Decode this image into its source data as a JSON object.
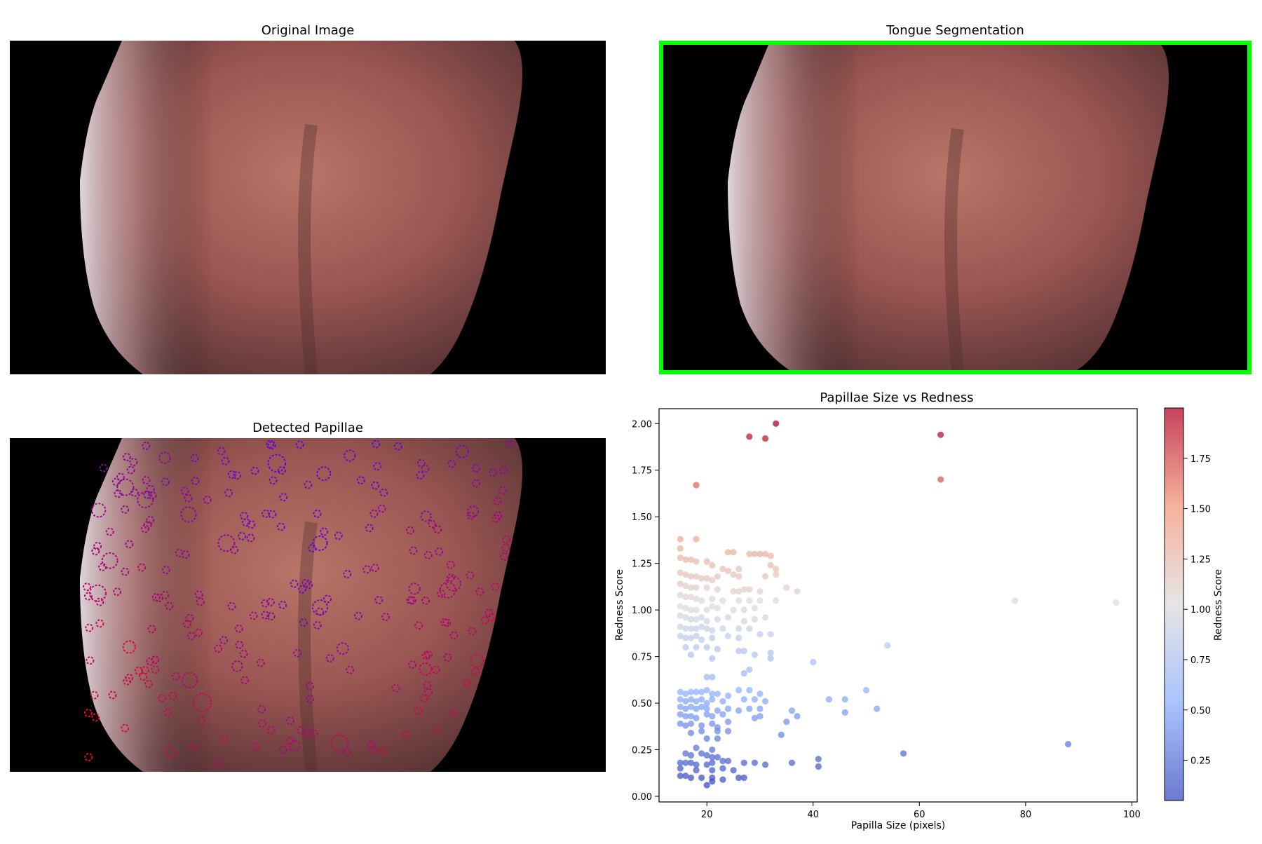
{
  "panels": {
    "original": {
      "title": "Original Image"
    },
    "segmentation": {
      "title": "Tongue Segmentation",
      "border_color": "#00ff00"
    },
    "papillae": {
      "title": "Detected Papillae"
    }
  },
  "chart_data": {
    "type": "scatter",
    "title": "Papillae Size vs Redness",
    "xlabel": "Papilla Size (pixels)",
    "ylabel": "Redness Score",
    "xlim": [
      11,
      101
    ],
    "ylim": [
      -0.03,
      2.08
    ],
    "xticks": [
      20,
      40,
      60,
      80,
      100
    ],
    "yticks": [
      0.0,
      0.25,
      0.5,
      0.75,
      1.0,
      1.25,
      1.5,
      1.75,
      2.0
    ],
    "xtick_labels": [
      "20",
      "40",
      "60",
      "80",
      "100"
    ],
    "ytick_labels": [
      "0.00",
      "0.25",
      "0.50",
      "0.75",
      "1.00",
      "1.25",
      "1.50",
      "1.75",
      "2.00"
    ],
    "colormap": "coolwarm",
    "colorbar": {
      "label": "Redness Score",
      "range": [
        0.05,
        2.0
      ],
      "ticks": [
        0.25,
        0.5,
        0.75,
        1.0,
        1.25,
        1.5,
        1.75
      ],
      "tick_labels": [
        "0.25",
        "0.50",
        "0.75",
        "1.00",
        "1.25",
        "1.50",
        "1.75"
      ]
    },
    "grid": false,
    "points": [
      {
        "x": 33,
        "y": 2.0
      },
      {
        "x": 28,
        "y": 1.93
      },
      {
        "x": 31,
        "y": 1.92
      },
      {
        "x": 64,
        "y": 1.94
      },
      {
        "x": 64,
        "y": 1.7
      },
      {
        "x": 18,
        "y": 1.67
      },
      {
        "x": 15,
        "y": 1.38
      },
      {
        "x": 18,
        "y": 1.38
      },
      {
        "x": 15,
        "y": 1.33
      },
      {
        "x": 24,
        "y": 1.31
      },
      {
        "x": 25,
        "y": 1.31
      },
      {
        "x": 28,
        "y": 1.3
      },
      {
        "x": 29,
        "y": 1.3
      },
      {
        "x": 30,
        "y": 1.3
      },
      {
        "x": 31,
        "y": 1.3
      },
      {
        "x": 32,
        "y": 1.29
      },
      {
        "x": 15,
        "y": 1.28
      },
      {
        "x": 16,
        "y": 1.27
      },
      {
        "x": 17,
        "y": 1.27
      },
      {
        "x": 18,
        "y": 1.26
      },
      {
        "x": 20,
        "y": 1.26
      },
      {
        "x": 21,
        "y": 1.24
      },
      {
        "x": 23,
        "y": 1.22
      },
      {
        "x": 24,
        "y": 1.21
      },
      {
        "x": 26,
        "y": 1.22
      },
      {
        "x": 32,
        "y": 1.24
      },
      {
        "x": 33,
        "y": 1.22
      },
      {
        "x": 15,
        "y": 1.2
      },
      {
        "x": 16,
        "y": 1.19
      },
      {
        "x": 17,
        "y": 1.18
      },
      {
        "x": 18,
        "y": 1.18
      },
      {
        "x": 19,
        "y": 1.17
      },
      {
        "x": 20,
        "y": 1.17
      },
      {
        "x": 21,
        "y": 1.16
      },
      {
        "x": 22,
        "y": 1.18
      },
      {
        "x": 25,
        "y": 1.19
      },
      {
        "x": 26,
        "y": 1.18
      },
      {
        "x": 31,
        "y": 1.18
      },
      {
        "x": 33,
        "y": 1.19
      },
      {
        "x": 15,
        "y": 1.14
      },
      {
        "x": 16,
        "y": 1.13
      },
      {
        "x": 17,
        "y": 1.12
      },
      {
        "x": 18,
        "y": 1.12
      },
      {
        "x": 20,
        "y": 1.12
      },
      {
        "x": 22,
        "y": 1.11
      },
      {
        "x": 25,
        "y": 1.1
      },
      {
        "x": 26,
        "y": 1.1
      },
      {
        "x": 27,
        "y": 1.11
      },
      {
        "x": 28,
        "y": 1.11
      },
      {
        "x": 30,
        "y": 1.1
      },
      {
        "x": 35,
        "y": 1.12
      },
      {
        "x": 37,
        "y": 1.1
      },
      {
        "x": 15,
        "y": 1.08
      },
      {
        "x": 16,
        "y": 1.07
      },
      {
        "x": 17,
        "y": 1.07
      },
      {
        "x": 18,
        "y": 1.06
      },
      {
        "x": 19,
        "y": 1.05
      },
      {
        "x": 21,
        "y": 1.06
      },
      {
        "x": 23,
        "y": 1.05
      },
      {
        "x": 26,
        "y": 1.05
      },
      {
        "x": 28,
        "y": 1.05
      },
      {
        "x": 30,
        "y": 1.05
      },
      {
        "x": 33,
        "y": 1.05
      },
      {
        "x": 78,
        "y": 1.05
      },
      {
        "x": 97,
        "y": 1.04
      },
      {
        "x": 15,
        "y": 1.02
      },
      {
        "x": 16,
        "y": 1.01
      },
      {
        "x": 17,
        "y": 1.0
      },
      {
        "x": 18,
        "y": 1.0
      },
      {
        "x": 20,
        "y": 1.0
      },
      {
        "x": 21,
        "y": 1.02
      },
      {
        "x": 22,
        "y": 1.01
      },
      {
        "x": 25,
        "y": 1.0
      },
      {
        "x": 27,
        "y": 1.0
      },
      {
        "x": 29,
        "y": 1.01
      },
      {
        "x": 15,
        "y": 0.97
      },
      {
        "x": 16,
        "y": 0.96
      },
      {
        "x": 17,
        "y": 0.95
      },
      {
        "x": 18,
        "y": 0.95
      },
      {
        "x": 19,
        "y": 0.96
      },
      {
        "x": 20,
        "y": 0.94
      },
      {
        "x": 22,
        "y": 0.95
      },
      {
        "x": 24,
        "y": 0.96
      },
      {
        "x": 27,
        "y": 0.94
      },
      {
        "x": 29,
        "y": 0.95
      },
      {
        "x": 31,
        "y": 0.96
      },
      {
        "x": 15,
        "y": 0.91
      },
      {
        "x": 16,
        "y": 0.9
      },
      {
        "x": 17,
        "y": 0.9
      },
      {
        "x": 18,
        "y": 0.9
      },
      {
        "x": 19,
        "y": 0.91
      },
      {
        "x": 20,
        "y": 0.9
      },
      {
        "x": 21,
        "y": 0.89
      },
      {
        "x": 23,
        "y": 0.9
      },
      {
        "x": 26,
        "y": 0.9
      },
      {
        "x": 28,
        "y": 0.9
      },
      {
        "x": 15,
        "y": 0.86
      },
      {
        "x": 16,
        "y": 0.85
      },
      {
        "x": 17,
        "y": 0.85
      },
      {
        "x": 18,
        "y": 0.86
      },
      {
        "x": 19,
        "y": 0.84
      },
      {
        "x": 21,
        "y": 0.85
      },
      {
        "x": 24,
        "y": 0.86
      },
      {
        "x": 26,
        "y": 0.85
      },
      {
        "x": 30,
        "y": 0.87
      },
      {
        "x": 32,
        "y": 0.87
      },
      {
        "x": 16,
        "y": 0.8
      },
      {
        "x": 18,
        "y": 0.8
      },
      {
        "x": 20,
        "y": 0.8
      },
      {
        "x": 22,
        "y": 0.79
      },
      {
        "x": 26,
        "y": 0.78
      },
      {
        "x": 27,
        "y": 0.78
      },
      {
        "x": 29,
        "y": 0.76
      },
      {
        "x": 32,
        "y": 0.77
      },
      {
        "x": 54,
        "y": 0.81
      },
      {
        "x": 17,
        "y": 0.76
      },
      {
        "x": 21,
        "y": 0.74
      },
      {
        "x": 32,
        "y": 0.74
      },
      {
        "x": 40,
        "y": 0.72
      },
      {
        "x": 28,
        "y": 0.68
      },
      {
        "x": 27,
        "y": 0.66
      },
      {
        "x": 20,
        "y": 0.64
      },
      {
        "x": 21,
        "y": 0.64
      },
      {
        "x": 15,
        "y": 0.56
      },
      {
        "x": 16,
        "y": 0.55
      },
      {
        "x": 17,
        "y": 0.56
      },
      {
        "x": 18,
        "y": 0.56
      },
      {
        "x": 19,
        "y": 0.56
      },
      {
        "x": 20,
        "y": 0.57
      },
      {
        "x": 21,
        "y": 0.55
      },
      {
        "x": 22,
        "y": 0.55
      },
      {
        "x": 24,
        "y": 0.54
      },
      {
        "x": 26,
        "y": 0.57
      },
      {
        "x": 28,
        "y": 0.57
      },
      {
        "x": 30,
        "y": 0.55
      },
      {
        "x": 50,
        "y": 0.57
      },
      {
        "x": 15,
        "y": 0.52
      },
      {
        "x": 16,
        "y": 0.51
      },
      {
        "x": 17,
        "y": 0.52
      },
      {
        "x": 18,
        "y": 0.51
      },
      {
        "x": 19,
        "y": 0.52
      },
      {
        "x": 20,
        "y": 0.5
      },
      {
        "x": 21,
        "y": 0.52
      },
      {
        "x": 23,
        "y": 0.51
      },
      {
        "x": 27,
        "y": 0.52
      },
      {
        "x": 29,
        "y": 0.52
      },
      {
        "x": 31,
        "y": 0.51
      },
      {
        "x": 43,
        "y": 0.52
      },
      {
        "x": 46,
        "y": 0.52
      },
      {
        "x": 15,
        "y": 0.48
      },
      {
        "x": 16,
        "y": 0.47
      },
      {
        "x": 17,
        "y": 0.48
      },
      {
        "x": 18,
        "y": 0.47
      },
      {
        "x": 19,
        "y": 0.48
      },
      {
        "x": 20,
        "y": 0.47
      },
      {
        "x": 22,
        "y": 0.46
      },
      {
        "x": 24,
        "y": 0.47
      },
      {
        "x": 26,
        "y": 0.46
      },
      {
        "x": 28,
        "y": 0.47
      },
      {
        "x": 30,
        "y": 0.47
      },
      {
        "x": 36,
        "y": 0.46
      },
      {
        "x": 52,
        "y": 0.47
      },
      {
        "x": 15,
        "y": 0.44
      },
      {
        "x": 16,
        "y": 0.43
      },
      {
        "x": 17,
        "y": 0.43
      },
      {
        "x": 18,
        "y": 0.42
      },
      {
        "x": 20,
        "y": 0.44
      },
      {
        "x": 21,
        "y": 0.43
      },
      {
        "x": 23,
        "y": 0.44
      },
      {
        "x": 29,
        "y": 0.42
      },
      {
        "x": 30,
        "y": 0.43
      },
      {
        "x": 37,
        "y": 0.43
      },
      {
        "x": 46,
        "y": 0.45
      },
      {
        "x": 15,
        "y": 0.39
      },
      {
        "x": 16,
        "y": 0.38
      },
      {
        "x": 17,
        "y": 0.39
      },
      {
        "x": 19,
        "y": 0.38
      },
      {
        "x": 21,
        "y": 0.39
      },
      {
        "x": 22,
        "y": 0.37
      },
      {
        "x": 24,
        "y": 0.4
      },
      {
        "x": 35,
        "y": 0.4
      },
      {
        "x": 17,
        "y": 0.34
      },
      {
        "x": 19,
        "y": 0.35
      },
      {
        "x": 22,
        "y": 0.35
      },
      {
        "x": 24,
        "y": 0.35
      },
      {
        "x": 34,
        "y": 0.33
      },
      {
        "x": 20,
        "y": 0.31
      },
      {
        "x": 22,
        "y": 0.31
      },
      {
        "x": 88,
        "y": 0.28
      },
      {
        "x": 18,
        "y": 0.26
      },
      {
        "x": 21,
        "y": 0.25
      },
      {
        "x": 16,
        "y": 0.23
      },
      {
        "x": 17,
        "y": 0.22
      },
      {
        "x": 19,
        "y": 0.23
      },
      {
        "x": 20,
        "y": 0.22
      },
      {
        "x": 21,
        "y": 0.21
      },
      {
        "x": 22,
        "y": 0.21
      },
      {
        "x": 57,
        "y": 0.23
      },
      {
        "x": 15,
        "y": 0.18
      },
      {
        "x": 16,
        "y": 0.18
      },
      {
        "x": 17,
        "y": 0.18
      },
      {
        "x": 18,
        "y": 0.17
      },
      {
        "x": 20,
        "y": 0.17
      },
      {
        "x": 21,
        "y": 0.18
      },
      {
        "x": 23,
        "y": 0.19
      },
      {
        "x": 24,
        "y": 0.19
      },
      {
        "x": 27,
        "y": 0.18
      },
      {
        "x": 29,
        "y": 0.18
      },
      {
        "x": 31,
        "y": 0.17
      },
      {
        "x": 36,
        "y": 0.18
      },
      {
        "x": 41,
        "y": 0.2
      },
      {
        "x": 41,
        "y": 0.16
      },
      {
        "x": 15,
        "y": 0.15
      },
      {
        "x": 18,
        "y": 0.14
      },
      {
        "x": 21,
        "y": 0.14
      },
      {
        "x": 23,
        "y": 0.15
      },
      {
        "x": 25,
        "y": 0.14
      },
      {
        "x": 15,
        "y": 0.11
      },
      {
        "x": 16,
        "y": 0.11
      },
      {
        "x": 17,
        "y": 0.1
      },
      {
        "x": 19,
        "y": 0.1
      },
      {
        "x": 21,
        "y": 0.1
      },
      {
        "x": 23,
        "y": 0.09
      },
      {
        "x": 26,
        "y": 0.1
      },
      {
        "x": 27,
        "y": 0.1
      },
      {
        "x": 21,
        "y": 0.08
      },
      {
        "x": 20,
        "y": 0.06
      }
    ]
  }
}
